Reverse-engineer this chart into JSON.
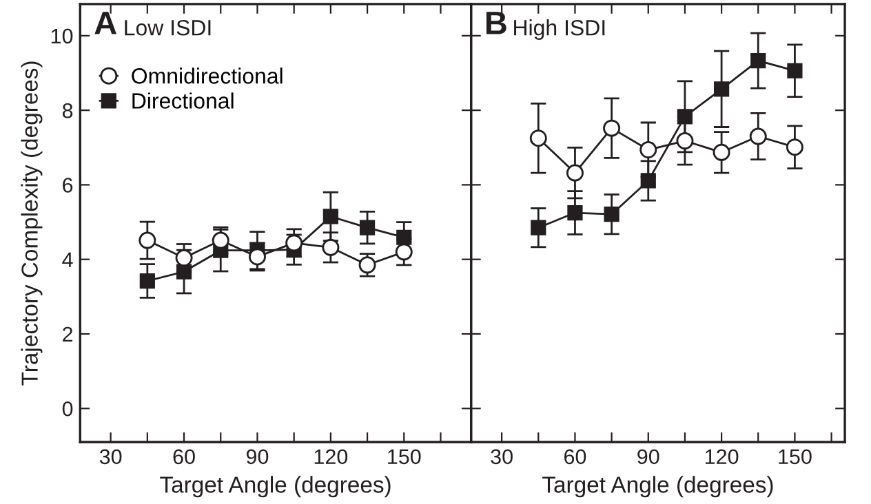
{
  "chart_data": [
    {
      "type": "line",
      "annotations": [
        "A",
        "Low ISDI"
      ],
      "xlabel": "Target Angle (degrees)",
      "ylabel": "Trajectory Complexity (degrees)",
      "x": [
        45,
        60,
        75,
        90,
        105,
        120,
        135,
        150
      ],
      "xlim": [
        17.5,
        177.5
      ],
      "ylim": [
        -0.9,
        10.85
      ],
      "xticks": [
        30,
        {
          "value": 45,
          "label": null
        },
        60,
        {
          "value": 75,
          "label": null
        },
        90,
        {
          "value": 105,
          "label": null
        },
        120,
        {
          "value": 135,
          "label": null
        },
        150,
        {
          "value": 165,
          "label": null
        }
      ],
      "yticks": [
        0,
        2,
        4,
        6,
        8,
        10
      ],
      "grid": false,
      "legend": "top left",
      "tick_labels": true,
      "series": [
        {
          "name": "Omnidirectional",
          "color": "#ffffff",
          "marker": "circle",
          "values": [
            4.51,
            4.04,
            4.51,
            4.07,
            4.44,
            4.32,
            3.85,
            4.2
          ],
          "errors": [
            0.5,
            0.37,
            0.35,
            0.37,
            0.37,
            0.4,
            0.3,
            0.35
          ]
        },
        {
          "name": "Directional",
          "color": "#231f20",
          "marker": "square",
          "values": [
            3.42,
            3.67,
            4.24,
            4.24,
            4.26,
            5.15,
            4.85,
            4.59
          ],
          "errors": [
            0.45,
            0.58,
            0.56,
            0.5,
            0.4,
            0.65,
            0.43,
            0.41
          ]
        }
      ]
    },
    {
      "type": "line",
      "annotations": [
        "B",
        "High ISDI"
      ],
      "xlabel": "Target Angle (degrees)",
      "x": [
        45,
        60,
        75,
        90,
        105,
        120,
        135,
        150
      ],
      "xlim": [
        17.5,
        170.5
      ],
      "ylim": [
        -0.9,
        10.85
      ],
      "xticks": [
        30,
        {
          "value": 45,
          "label": null
        },
        60,
        {
          "value": 75,
          "label": null
        },
        90,
        {
          "value": 105,
          "label": null
        },
        120,
        {
          "value": 135,
          "label": null
        },
        150,
        {
          "value": 165,
          "label": null
        }
      ],
      "yticks": [
        {
          "value": 0,
          "label": null
        },
        {
          "value": 2,
          "label": null
        },
        {
          "value": 4,
          "label": null
        },
        {
          "value": 6,
          "label": null
        },
        {
          "value": 8,
          "label": null
        },
        {
          "value": 10,
          "label": null
        }
      ],
      "grid": false,
      "legend": false,
      "tick_labels": "x",
      "series": [
        {
          "color": "#ffffff",
          "marker": "circle",
          "values": [
            7.25,
            6.32,
            7.52,
            6.94,
            7.18,
            6.87,
            7.3,
            7.01
          ],
          "errors": [
            0.93,
            0.68,
            0.8,
            0.73,
            0.64,
            0.55,
            0.62,
            0.57
          ]
        },
        {
          "color": "#231f20",
          "marker": "square",
          "values": [
            4.85,
            5.25,
            5.21,
            6.11,
            7.83,
            8.57,
            9.33,
            9.06
          ],
          "errors": [
            0.52,
            0.58,
            0.53,
            0.53,
            0.95,
            1.02,
            0.74,
            0.7
          ]
        }
      ]
    }
  ]
}
